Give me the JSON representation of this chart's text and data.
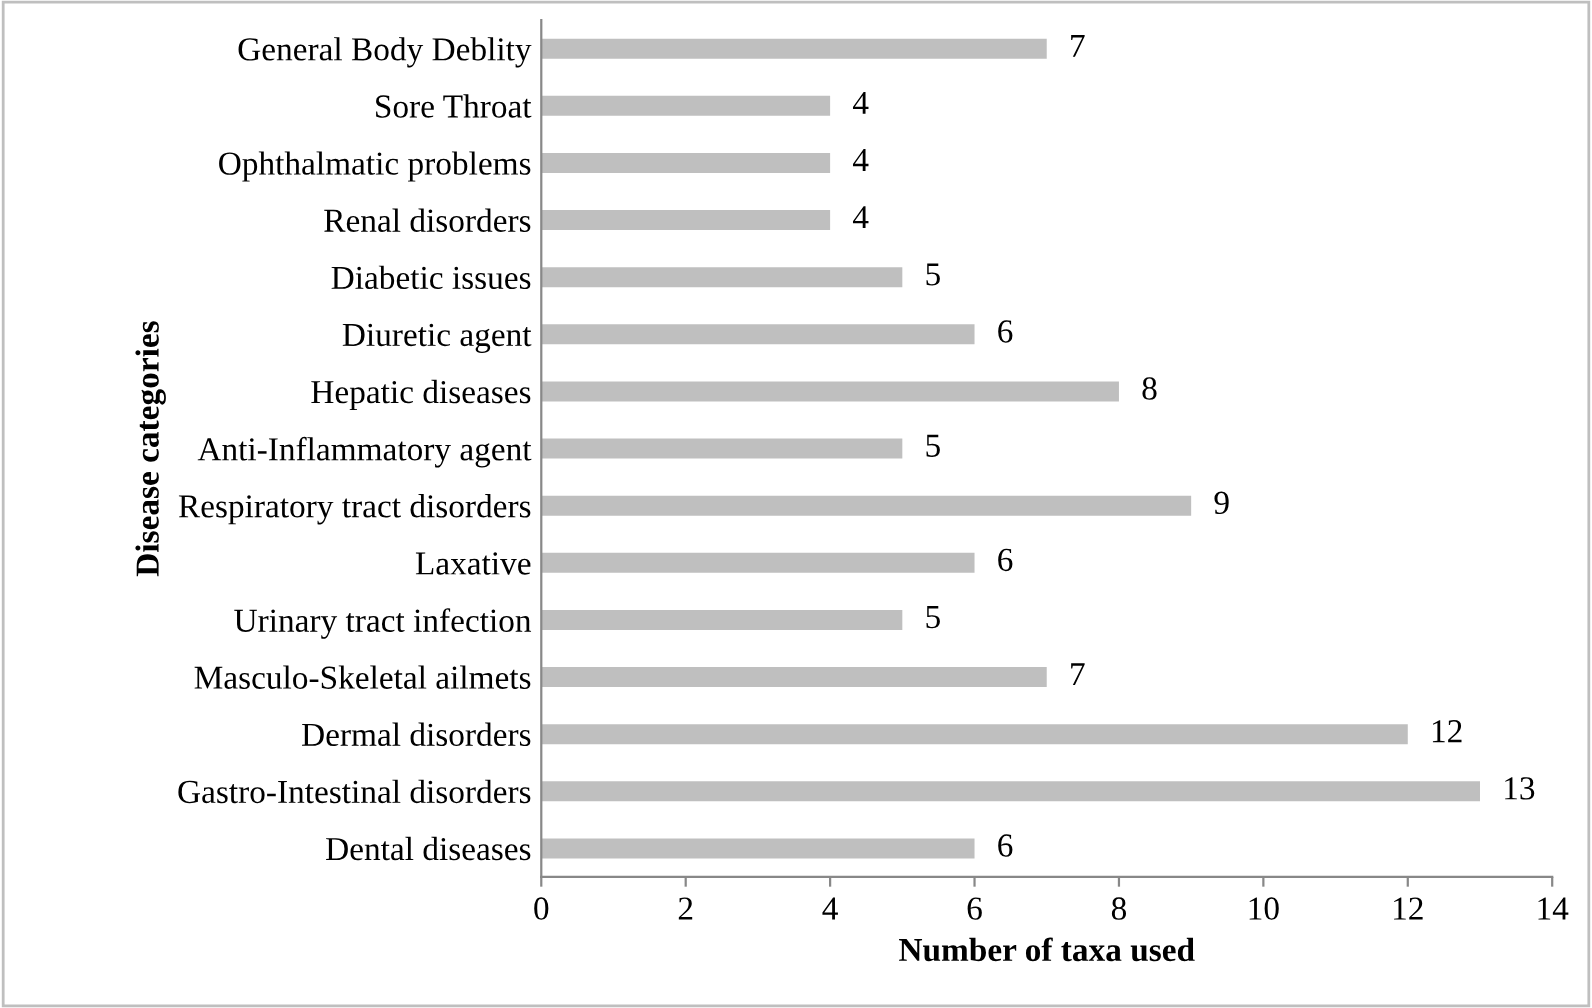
{
  "chart_data": {
    "type": "bar",
    "orientation": "horizontal",
    "xlabel": "Number of taxa used",
    "ylabel": "Disease categories",
    "categories": [
      "General Body Deblity",
      "Sore Throat",
      "Ophthalmatic problems",
      "Renal disorders",
      "Diabetic issues",
      "Diuretic agent",
      "Hepatic diseases",
      "Anti-Inflammatory agent",
      "Respiratory tract disorders",
      "Laxative",
      "Urinary tract infection",
      "Masculo-Skeletal ailmets",
      "Dermal disorders",
      "Gastro-Intestinal disorders",
      "Dental diseases"
    ],
    "values": [
      7,
      4,
      4,
      4,
      5,
      6,
      8,
      5,
      9,
      6,
      5,
      7,
      12,
      13,
      6
    ],
    "color": "#bfbfbf",
    "xlim": [
      0,
      14
    ],
    "xticks": [
      0,
      2,
      4,
      6,
      8,
      10,
      12,
      14
    ],
    "grid": false,
    "data_labels": true
  }
}
